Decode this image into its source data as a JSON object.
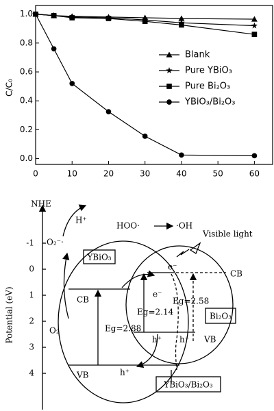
{
  "chart_data": {
    "type": "line",
    "ylabel": "C/C₀",
    "x": [
      0,
      5,
      10,
      20,
      30,
      40,
      60
    ],
    "xlim": [
      0,
      65
    ],
    "xticks": [
      0,
      10,
      20,
      30,
      40,
      50,
      60
    ],
    "ylim": [
      -0.04,
      1.06
    ],
    "yticks": [
      {
        "value": 0,
        "label": "0.0"
      },
      {
        "value": 0.2,
        "label": "0.2"
      },
      {
        "value": 0.4,
        "label": "0.4"
      },
      {
        "value": 0.6,
        "label": "0.6"
      },
      {
        "value": 0.8,
        "label": "0.8"
      },
      {
        "value": 1,
        "label": "1.0"
      }
    ],
    "series": [
      {
        "name": "Blank",
        "color": "#000000",
        "marker": "triangle",
        "values": [
          1.0,
          0.99,
          0.985,
          0.98,
          0.975,
          0.97,
          0.965
        ]
      },
      {
        "name": "Pure YBiO₃",
        "color": "#000000",
        "marker": "star",
        "values": [
          1.0,
          0.99,
          0.98,
          0.975,
          0.96,
          0.94,
          0.92
        ]
      },
      {
        "name": "Pure Bi₂O₃",
        "color": "#000000",
        "marker": "square",
        "values": [
          1.0,
          0.99,
          0.975,
          0.97,
          0.95,
          0.925,
          0.86
        ]
      },
      {
        "name": "YBiO₃/Bi₂O₃",
        "color": "#000000",
        "marker": "circle",
        "values": [
          1.0,
          0.76,
          0.52,
          0.325,
          0.155,
          0.025,
          0.02
        ]
      }
    ]
  },
  "diagram": {
    "axis_title": "NHE",
    "axis_label": "Potential (eV)",
    "potential_ticks": [
      "-1",
      "0",
      "1",
      "2",
      "3",
      "4"
    ],
    "h_plus": "H⁺",
    "hoo": "HOO·",
    "oh": "·OH",
    "o2_radical": "O₂⁻·",
    "o2": "O₂",
    "ybio3": "YBiO₃",
    "bi2o3": "Bi₂O₃",
    "composite": "YBiO₃/Bi₂O₃",
    "light": "Visible light",
    "cb_ybio3": "CB",
    "vb_ybio3": "VB",
    "cb_bi2o3": "CB",
    "vb_bi2o3": "VB",
    "e1": "e⁻",
    "e2": "e⁻",
    "h1": "h⁺",
    "h2": "h⁺",
    "h3": "h⁺",
    "eg_ybio3": "Eg=2.88",
    "eg_bi2o3_a": "Eg=2.14",
    "eg_bi2o3_b": "Eg=2.58"
  }
}
